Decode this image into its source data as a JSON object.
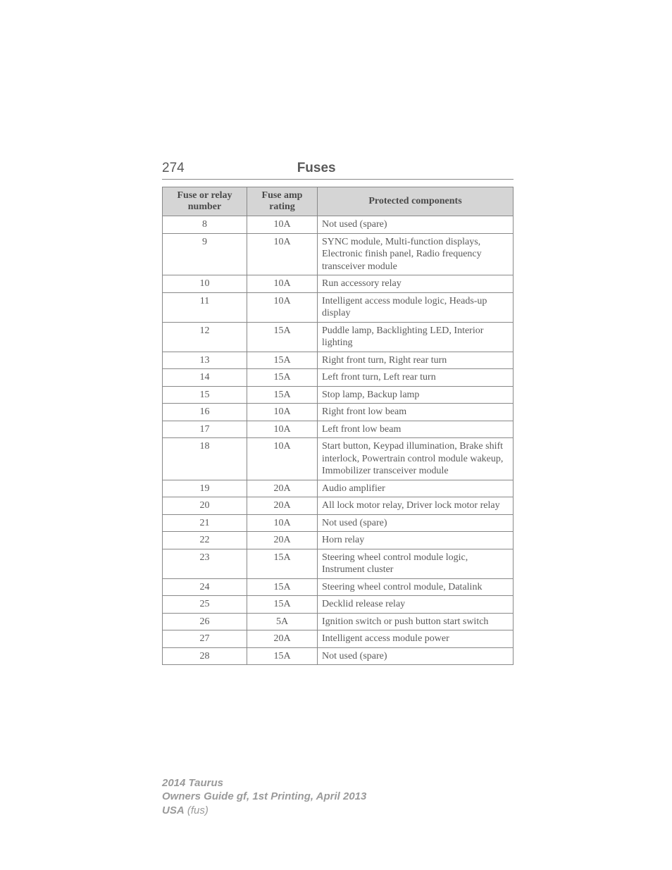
{
  "header": {
    "page_number": "274",
    "title": "Fuses"
  },
  "table": {
    "columns": [
      "Fuse or relay number",
      "Fuse amp rating",
      "Protected components"
    ],
    "rows": [
      {
        "num": "8",
        "amp": "10A",
        "prot": "Not used (spare)"
      },
      {
        "num": "9",
        "amp": "10A",
        "prot": "SYNC module, Multi-function displays, Electronic finish panel, Radio frequency transceiver module"
      },
      {
        "num": "10",
        "amp": "10A",
        "prot": "Run accessory relay"
      },
      {
        "num": "11",
        "amp": "10A",
        "prot": "Intelligent access module logic, Heads-up display"
      },
      {
        "num": "12",
        "amp": "15A",
        "prot": "Puddle lamp, Backlighting LED, Interior lighting"
      },
      {
        "num": "13",
        "amp": "15A",
        "prot": "Right front turn, Right rear turn"
      },
      {
        "num": "14",
        "amp": "15A",
        "prot": "Left front turn, Left rear turn"
      },
      {
        "num": "15",
        "amp": "15A",
        "prot": "Stop lamp, Backup lamp"
      },
      {
        "num": "16",
        "amp": "10A",
        "prot": "Right front low beam"
      },
      {
        "num": "17",
        "amp": "10A",
        "prot": "Left front low beam"
      },
      {
        "num": "18",
        "amp": "10A",
        "prot": "Start button, Keypad illumination, Brake shift interlock, Powertrain control module wakeup, Immobilizer transceiver module"
      },
      {
        "num": "19",
        "amp": "20A",
        "prot": "Audio amplifier"
      },
      {
        "num": "20",
        "amp": "20A",
        "prot": "All lock motor relay, Driver lock motor relay"
      },
      {
        "num": "21",
        "amp": "10A",
        "prot": "Not used (spare)"
      },
      {
        "num": "22",
        "amp": "20A",
        "prot": "Horn relay"
      },
      {
        "num": "23",
        "amp": "15A",
        "prot": "Steering wheel control module logic, Instrument cluster"
      },
      {
        "num": "24",
        "amp": "15A",
        "prot": "Steering wheel control module, Datalink"
      },
      {
        "num": "25",
        "amp": "15A",
        "prot": "Decklid release relay"
      },
      {
        "num": "26",
        "amp": "5A",
        "prot": "Ignition switch or push button start switch"
      },
      {
        "num": "27",
        "amp": "20A",
        "prot": "Intelligent access module power"
      },
      {
        "num": "28",
        "amp": "15A",
        "prot": "Not used (spare)"
      }
    ]
  },
  "footer": {
    "line1": "2014 Taurus",
    "line2": "Owners Guide gf, 1st Printing, April 2013",
    "line3_bold": "USA",
    "line3_reg": " (fus)"
  }
}
